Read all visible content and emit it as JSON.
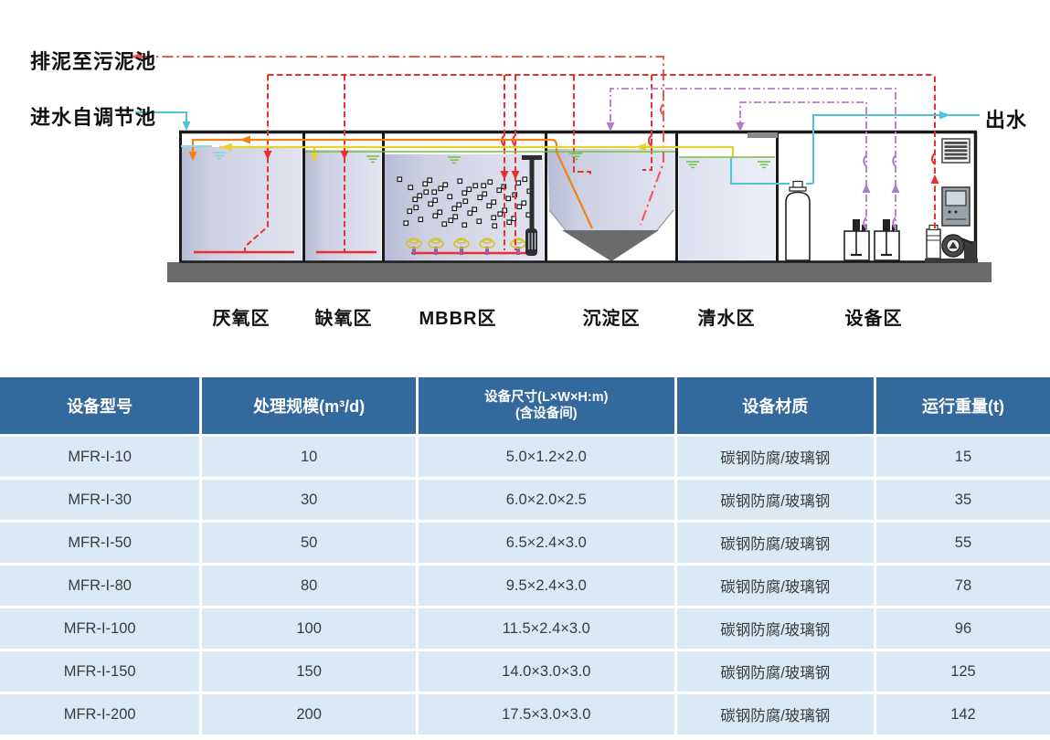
{
  "diagram": {
    "sludge_label": "排泥至污泥池",
    "inlet_label": "进水自调节池",
    "outlet_label": "出水",
    "zones": [
      {
        "label": "厌氧区"
      },
      {
        "label": "缺氧区"
      },
      {
        "label": "MBBR区"
      },
      {
        "label": "沉淀区"
      },
      {
        "label": "清水区"
      },
      {
        "label": "设备区"
      }
    ],
    "line_colors": {
      "inlet_outlet_water": "#4fc3d8",
      "air_supply": "#e8302e",
      "sludge_discharge": "#f2544e",
      "sludge_return": "#ef8218",
      "internal_recycle": "#e6d22e",
      "water_level": "#72bf44",
      "chemical_dosing": "#b27cc6"
    }
  },
  "table": {
    "columns": [
      {
        "label": "设备型号"
      },
      {
        "label": "处理规模(m³/d)"
      },
      {
        "label": "设备尺寸(L×W×H:m)",
        "label2": "(含设备间)"
      },
      {
        "label": "设备材质"
      },
      {
        "label": "运行重量(t)"
      }
    ],
    "rows": [
      [
        "MFR-I-10",
        "10",
        "5.0×1.2×2.0",
        "碳钢防腐/玻璃钢",
        "15"
      ],
      [
        "MFR-I-30",
        "30",
        "6.0×2.0×2.5",
        "碳钢防腐/玻璃钢",
        "35"
      ],
      [
        "MFR-I-50",
        "50",
        "6.5×2.4×3.0",
        "碳钢防腐/玻璃钢",
        "55"
      ],
      [
        "MFR-I-80",
        "80",
        "9.5×2.4×3.0",
        "碳钢防腐/玻璃钢",
        "78"
      ],
      [
        "MFR-I-100",
        "100",
        "11.5×2.4×3.0",
        "碳钢防腐/玻璃钢",
        "96"
      ],
      [
        "MFR-I-150",
        "150",
        "14.0×3.0×3.0",
        "碳钢防腐/玻璃钢",
        "125"
      ],
      [
        "MFR-I-200",
        "200",
        "17.5×3.0×3.0",
        "碳钢防腐/玻璃钢",
        "142"
      ]
    ]
  },
  "colors": {
    "table_header_bg": "#34699e",
    "table_row_bg": "#d9e9f6"
  }
}
